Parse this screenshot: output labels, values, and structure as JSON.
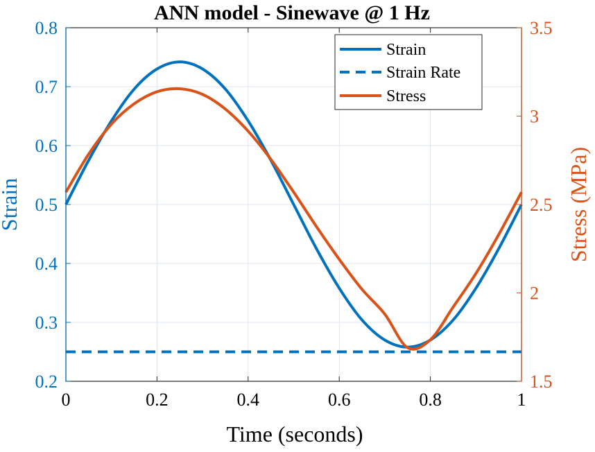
{
  "chart_data": {
    "type": "line",
    "title": "ANN model - Sinewave @ 1 Hz",
    "xlabel": "Time (seconds)",
    "ylabel_left": "Strain",
    "ylabel_right": "Stress (MPa)",
    "xlim": [
      0,
      1
    ],
    "ylim_left": [
      0.2,
      0.8
    ],
    "ylim_right": [
      1.5,
      3.5
    ],
    "x_ticks": [
      "0",
      "0.2",
      "0.4",
      "0.6",
      "0.8",
      "1"
    ],
    "x_tick_values": [
      0,
      0.2,
      0.4,
      0.6,
      0.8,
      1
    ],
    "y_left_ticks": [
      "0.2",
      "0.3",
      "0.4",
      "0.5",
      "0.6",
      "0.7",
      "0.8"
    ],
    "y_left_tick_values": [
      0.2,
      0.3,
      0.4,
      0.5,
      0.6,
      0.7,
      0.8
    ],
    "y_right_ticks": [
      "1.5",
      "2",
      "2.5",
      "3",
      "3.5"
    ],
    "y_right_tick_values": [
      1.5,
      2,
      2.5,
      3,
      3.5
    ],
    "grid": true,
    "legend_position": "top-right",
    "colors": {
      "left_axis": "#0072BD",
      "right_axis": "#D95319",
      "strain": "#0072BD",
      "strain_rate": "#0072BD",
      "stress": "#D95319",
      "grid": "#dfe6ee"
    },
    "series": [
      {
        "name": "Strain",
        "axis": "left",
        "style": "solid",
        "x": [
          0,
          0.05,
          0.1,
          0.15,
          0.2,
          0.25,
          0.3,
          0.35,
          0.4,
          0.45,
          0.5,
          0.55,
          0.6,
          0.65,
          0.7,
          0.75,
          0.8,
          0.85,
          0.9,
          0.95,
          1
        ],
        "values": [
          0.5,
          0.575,
          0.642,
          0.696,
          0.73,
          0.742,
          0.73,
          0.696,
          0.642,
          0.575,
          0.5,
          0.425,
          0.358,
          0.304,
          0.27,
          0.258,
          0.27,
          0.304,
          0.358,
          0.425,
          0.5
        ]
      },
      {
        "name": "Strain Rate",
        "axis": "left",
        "style": "dashed",
        "x": [
          0,
          1
        ],
        "values": [
          0.25,
          0.25
        ]
      },
      {
        "name": "Stress",
        "axis": "right",
        "style": "solid",
        "x": [
          0,
          0.05,
          0.1,
          0.15,
          0.2,
          0.25,
          0.3,
          0.35,
          0.4,
          0.45,
          0.5,
          0.55,
          0.6,
          0.65,
          0.7,
          0.75,
          0.8,
          0.85,
          0.9,
          0.95,
          1
        ],
        "values": [
          2.57,
          2.785,
          2.955,
          3.07,
          3.138,
          3.155,
          3.123,
          3.04,
          2.915,
          2.755,
          2.57,
          2.375,
          2.19,
          2.02,
          1.88,
          1.69,
          1.735,
          1.92,
          2.11,
          2.33,
          2.57
        ]
      }
    ]
  }
}
